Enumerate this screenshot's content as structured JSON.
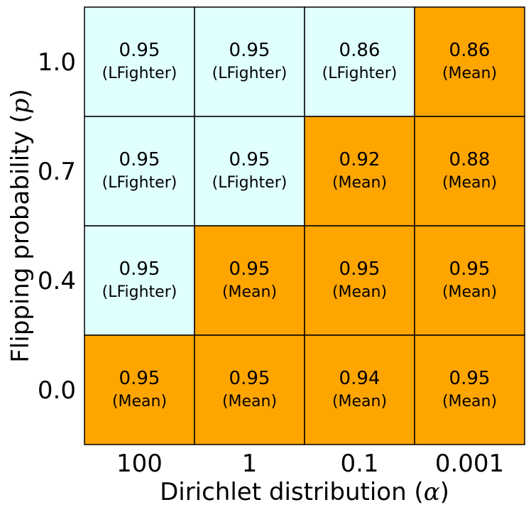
{
  "chart_data": {
    "type": "heatmap",
    "title": "",
    "xlabel": "Dirichlet distribution (α)",
    "ylabel": "Flipping probability (p)",
    "x_categories": [
      "100",
      "1",
      "0.1",
      "0.001"
    ],
    "y_categories": [
      "1.0",
      "0.7",
      "0.4",
      "0.0"
    ],
    "colors": {
      "LFighter": "#e0ffff",
      "Mean": "#ffa500"
    },
    "cells": [
      [
        {
          "value": "0.95",
          "method": "LFighter"
        },
        {
          "value": "0.95",
          "method": "LFighter"
        },
        {
          "value": "0.86",
          "method": "LFighter"
        },
        {
          "value": "0.86",
          "method": "Mean"
        }
      ],
      [
        {
          "value": "0.95",
          "method": "LFighter"
        },
        {
          "value": "0.95",
          "method": "LFighter"
        },
        {
          "value": "0.92",
          "method": "Mean"
        },
        {
          "value": "0.88",
          "method": "Mean"
        }
      ],
      [
        {
          "value": "0.95",
          "method": "LFighter"
        },
        {
          "value": "0.95",
          "method": "Mean"
        },
        {
          "value": "0.95",
          "method": "Mean"
        },
        {
          "value": "0.95",
          "method": "Mean"
        }
      ],
      [
        {
          "value": "0.95",
          "method": "Mean"
        },
        {
          "value": "0.95",
          "method": "Mean"
        },
        {
          "value": "0.94",
          "method": "Mean"
        },
        {
          "value": "0.95",
          "method": "Mean"
        }
      ]
    ],
    "grid": true,
    "legend": "none"
  }
}
